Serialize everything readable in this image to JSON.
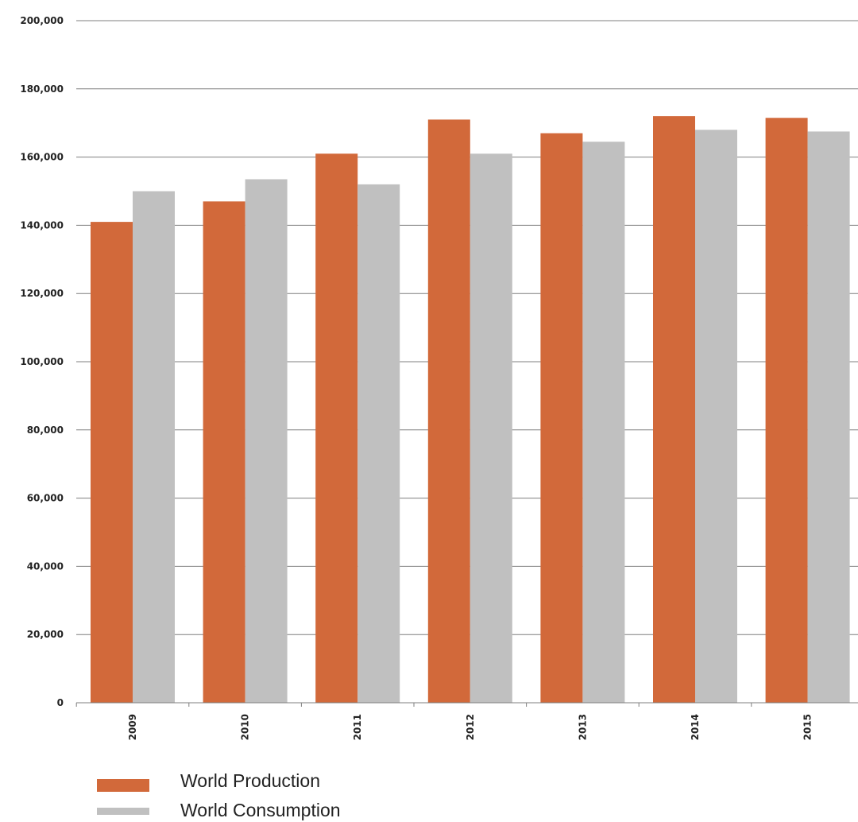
{
  "chart_data": {
    "type": "bar",
    "categories": [
      "2009",
      "2010",
      "2011",
      "2012",
      "2013",
      "2014",
      "2015"
    ],
    "series": [
      {
        "name": "World Production",
        "values": [
          141000,
          147000,
          161000,
          171000,
          167000,
          172000,
          171500
        ],
        "color": "#D2693A"
      },
      {
        "name": "World Consumption",
        "values": [
          150000,
          153500,
          152000,
          161000,
          164500,
          168000,
          167500
        ],
        "color": "#C0C0C0"
      }
    ],
    "title": "",
    "xlabel": "",
    "ylabel": "",
    "ylim": [
      0,
      200000
    ],
    "y_ticks": [
      "0",
      "20,000",
      "40,000",
      "60,000",
      "80,000",
      "100,000",
      "120,000",
      "140,000",
      "160,000",
      "180,000",
      "200,000"
    ],
    "x_tick_rotation": "vertical",
    "grid": "horizontal",
    "legend_position": "bottom-left",
    "gridline_color": "#7f7f7f"
  }
}
